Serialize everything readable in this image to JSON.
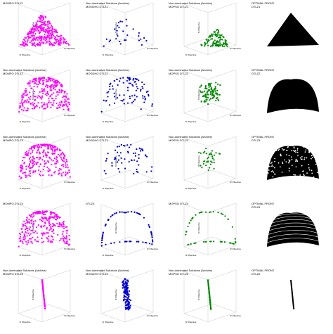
{
  "figure": {
    "rows": [
      "DTLZ1",
      "DTLZ2",
      "DTLZ3",
      "DTLZ4",
      "DTLZ5"
    ],
    "columns": [
      "MOMPO",
      "MOGDHO",
      "MOPSO",
      "OPTIMAL FRONT"
    ],
    "colors": {
      "MOMPO": "#ff00ff",
      "MOGDHO": "#0000cc",
      "MOPSO": "#008800",
      "OPTIMAL FRONT": "#000000"
    },
    "axis_labels": {
      "x": "f1 Objective",
      "y": "f2 Objective",
      "z": "f3 Objective"
    }
  },
  "chart_data": [
    {
      "row": 0,
      "col": 0,
      "type": "scatter",
      "title_lines": [
        "MOMPO DTLZ1"
      ],
      "shape": "triangle",
      "n": 320,
      "x": [
        0,
        0.5
      ],
      "y": [
        0,
        0.5
      ],
      "z": [
        0,
        0.5
      ]
    },
    {
      "row": 0,
      "col": 1,
      "type": "scatter",
      "title_lines": [
        "Non-dominated Solutions (Archive)",
        "MOGDHO DTLZ1"
      ],
      "shape": "triangle-sparse",
      "n": 30
    },
    {
      "row": 0,
      "col": 2,
      "type": "scatter",
      "title_lines": [
        "Non-dominated Solutions (Archive)",
        "MOPSO DTLZ1"
      ],
      "shape": "triangle-cluster",
      "n": 110
    },
    {
      "row": 0,
      "col": 3,
      "type": "surface",
      "title_lines": [
        "OPTIMAL FRONT",
        "DTLZ1"
      ],
      "shape": "triangle-solid"
    },
    {
      "row": 1,
      "col": 0,
      "type": "scatter",
      "title_lines": [
        "Non-dominated Solutions (Archive)",
        "MOMPO DTLZ2"
      ],
      "shape": "sphere",
      "n": 300,
      "x": [
        0,
        1
      ],
      "y": [
        0,
        1
      ],
      "z": [
        0,
        1
      ]
    },
    {
      "row": 1,
      "col": 1,
      "type": "scatter",
      "title_lines": [
        "Non-dominated Solutions (Archive)",
        "MOGDHO DTLZ2"
      ],
      "shape": "sphere-sparse",
      "n": 90
    },
    {
      "row": 1,
      "col": 2,
      "type": "scatter",
      "title_lines": [
        "Non-dominated Solutions (Archive)",
        "MOPSO DTLZ2"
      ],
      "shape": "sphere-cluster",
      "n": 100
    },
    {
      "row": 1,
      "col": 3,
      "type": "surface",
      "title_lines": [
        "OPTIMAL FRONT",
        "DTLZ2"
      ],
      "shape": "sphere-solid"
    },
    {
      "row": 2,
      "col": 0,
      "type": "scatter",
      "title_lines": [
        "Non-dominated Solutions (Archive)",
        "MOMPO DTLZ3"
      ],
      "shape": "sphere",
      "n": 280
    },
    {
      "row": 2,
      "col": 1,
      "type": "scatter",
      "title_lines": [
        "Non-dominated Solutions (Archive)",
        "MOGDHO DTLZ3"
      ],
      "shape": "sphere-sparse",
      "n": 60
    },
    {
      "row": 2,
      "col": 2,
      "type": "scatter",
      "title_lines": [
        "Non-dominated Solutions (Archive)",
        "MOPSO DTLZ3"
      ],
      "shape": "sphere-cluster",
      "n": 40
    },
    {
      "row": 2,
      "col": 3,
      "type": "surface",
      "title_lines": [
        "OPTIMAL FRONT",
        "DTLZ3"
      ],
      "shape": "sphere-holes"
    },
    {
      "row": 3,
      "col": 0,
      "type": "scatter",
      "title_lines": [
        "MOMPO DTLZ4"
      ],
      "shape": "sphere",
      "n": 280
    },
    {
      "row": 3,
      "col": 1,
      "type": "scatter",
      "title_lines": [
        "DTLZ4"
      ],
      "shape": "edges",
      "n": 80
    },
    {
      "row": 3,
      "col": 2,
      "type": "scatter",
      "title_lines": [
        "MOPSO DTLZ4"
      ],
      "shape": "edges-sparse",
      "n": 50
    },
    {
      "row": 3,
      "col": 3,
      "type": "surface",
      "title_lines": [
        "OPTIMAL FRONT",
        "DTLZ4"
      ],
      "shape": "sphere-rings"
    },
    {
      "row": 4,
      "col": 0,
      "type": "scatter",
      "title_lines": [
        "Non-dominated Solutions (Archive)",
        "MOMPO DTLZ5"
      ],
      "shape": "curve",
      "n": 120
    },
    {
      "row": 4,
      "col": 1,
      "type": "scatter",
      "title_lines": [
        "Non-dominated Solutions (Archive)",
        "MOGDHO DTLZ5"
      ],
      "shape": "curve-scatter",
      "n": 140
    },
    {
      "row": 4,
      "col": 2,
      "type": "scatter",
      "title_lines": [
        "Non-dominated Solutions (Archive)",
        "MOPSO DTLZ5"
      ],
      "shape": "curve",
      "n": 100
    },
    {
      "row": 4,
      "col": 3,
      "type": "line",
      "title_lines": [
        "OPTIMAL FRONT",
        "DTLZ5"
      ],
      "shape": "curve-solid",
      "n": 200
    }
  ]
}
